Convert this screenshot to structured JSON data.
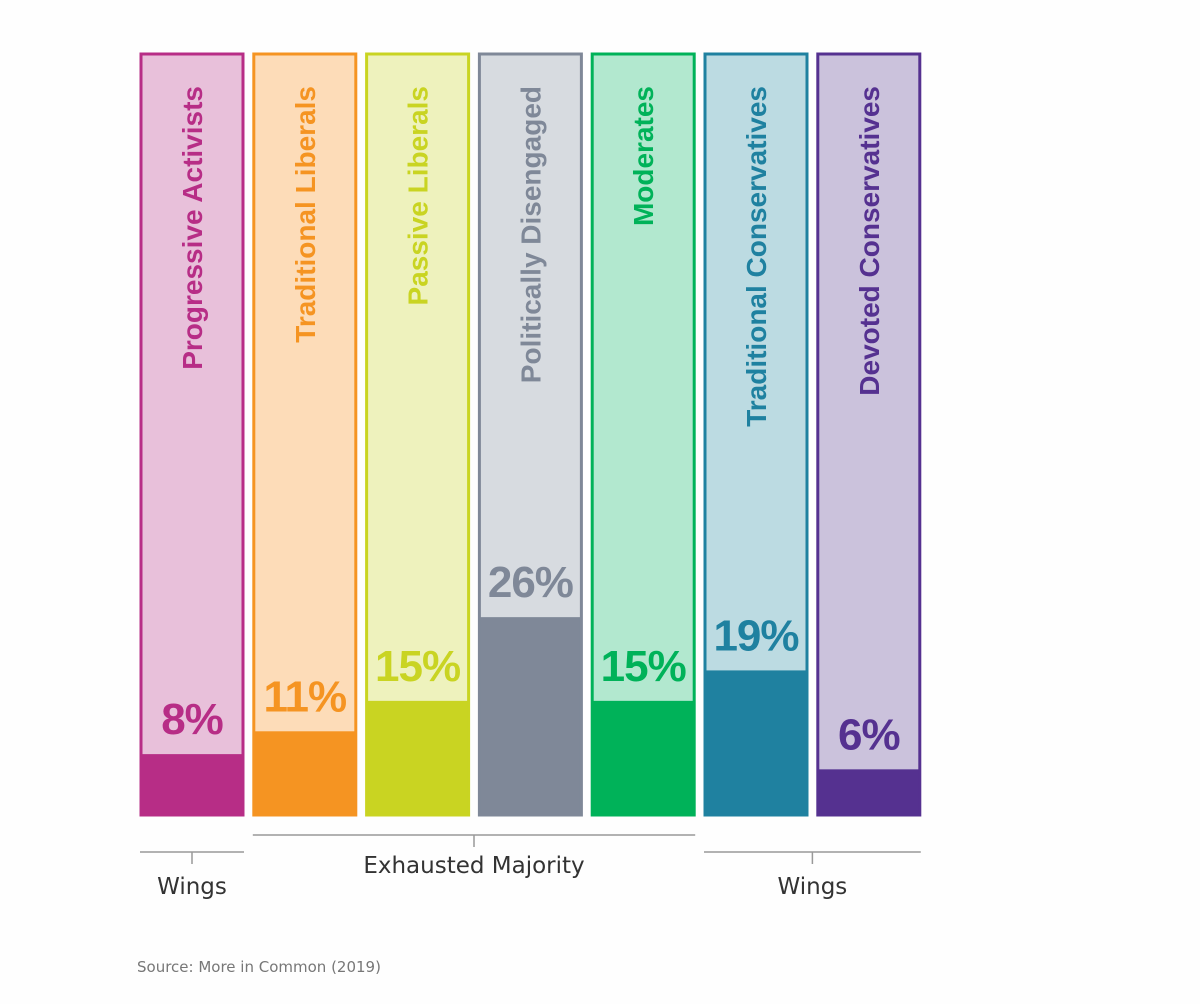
{
  "chart_data": {
    "type": "bar",
    "categories": [
      "Progressive Activists",
      "Traditional Liberals",
      "Passive Liberals",
      "Politically Disengaged",
      "Moderates",
      "Traditional Conservatives",
      "Devoted Conservatives"
    ],
    "values": [
      8,
      11,
      15,
      26,
      15,
      19,
      6
    ],
    "value_labels": [
      "8%",
      "11%",
      "15%",
      "26%",
      "15%",
      "19%",
      "6%"
    ],
    "ylim": [
      0,
      100
    ],
    "colors": {
      "fill": [
        "#b72d86",
        "#f59422",
        "#c9d422",
        "#7f8898",
        "#00b259",
        "#1f81a0",
        "#553190"
      ],
      "light": [
        "#e8c0da",
        "#fddcb8",
        "#eef2bd",
        "#d7dbe0",
        "#b2e8cf",
        "#bcdbe2",
        "#cbc2dc"
      ],
      "text": [
        "#b72d86",
        "#f59422",
        "#c9d422",
        "#7f8898",
        "#00b259",
        "#1f81a0",
        "#553190"
      ]
    },
    "groups": [
      {
        "label": "Wings",
        "from": 0,
        "to": 0
      },
      {
        "label": "Exhausted Majority",
        "from": 1,
        "to": 4
      },
      {
        "label": "Wings",
        "from": 5,
        "to": 6
      }
    ],
    "title": "",
    "xlabel": "",
    "ylabel": ""
  },
  "source": "Source: More in Common (2019)"
}
